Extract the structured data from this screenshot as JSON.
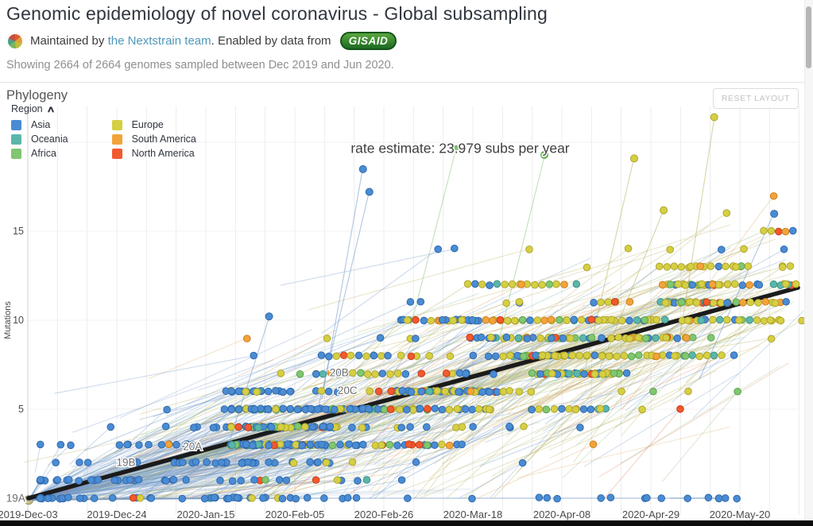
{
  "header": {
    "title": "Genomic epidemiology of novel coronavirus - Global subsampling",
    "byline": {
      "maintained_prefix": "Maintained by ",
      "team_link": "the Nextstrain team",
      "middle": ". Enabled by data from ",
      "gisaid_label": "GISAID"
    },
    "showing": "Showing 2664 of 2664 genomes sampled between Dec 2019 and Jun 2020."
  },
  "panel": {
    "title": "Phylogeny",
    "reset_button": "RESET LAYOUT",
    "legend_title": "Region",
    "legend_collapse_icon": "chevron-up"
  },
  "legend": {
    "columns": [
      [
        "asia",
        "oceania",
        "africa"
      ],
      [
        "europe",
        "south_america",
        "north_america"
      ]
    ]
  },
  "chart_data": {
    "type": "scatter",
    "description": "Clock view of phylogeny: divergence (mutations) vs sampling date, 2664 genomes colored by region",
    "rate_estimate_label": "rate estimate: 23.979 subs per year",
    "rate_estimate_subs_per_year": 23.979,
    "n_genomes": 2664,
    "x_axis": {
      "unit": "days since 2019-Dec-03",
      "ticks": [
        {
          "label": "2019-Dec-03",
          "day": 0
        },
        {
          "label": "2019-Dec-24",
          "day": 21
        },
        {
          "label": "2020-Jan-15",
          "day": 42
        },
        {
          "label": "2020-Feb-05",
          "day": 63
        },
        {
          "label": "2020-Feb-26",
          "day": 84
        },
        {
          "label": "2020-Mar-18",
          "day": 105
        },
        {
          "label": "2020-Apr-08",
          "day": 126
        },
        {
          "label": "2020-Apr-29",
          "day": 147
        },
        {
          "label": "2020-May-20",
          "day": 168
        }
      ],
      "minor_grid_days": 7,
      "domain_days": [
        0,
        183
      ]
    },
    "y_axis": {
      "label": "Mutations",
      "ticks": [
        15,
        10,
        5
      ],
      "gridlines": [
        5,
        10,
        15,
        20
      ],
      "domain": [
        0,
        22.4
      ]
    },
    "regression": {
      "d1": 0.15,
      "m1": 0.0,
      "d2": 181.7,
      "m2": 11.83,
      "color": "#1b1b1b",
      "width": 5.5
    },
    "root": {
      "day": 0.2,
      "m": -0.1,
      "color": "#c6bd85",
      "stroke": "#9a916b"
    },
    "clades": [
      {
        "name": "19A",
        "day": -5.1,
        "m": -0.2
      },
      {
        "name": "19B",
        "day": 20.9,
        "m": 1.8
      },
      {
        "name": "20A",
        "day": 36.6,
        "m": 2.7
      },
      {
        "name": "20B",
        "day": 71.2,
        "m": 6.85
      },
      {
        "name": "20C",
        "day": 73.1,
        "m": 5.85
      }
    ],
    "rate_label_pos": {
      "day": 102,
      "m": 19.4
    },
    "regions": {
      "asia": {
        "label": "Asia",
        "color": "#4a8cd3",
        "stroke": "#3069ad",
        "line": "#6e96c8"
      },
      "oceania": {
        "label": "Oceania",
        "color": "#5bb6aa",
        "stroke": "#3d948a",
        "line": "#7db8ae"
      },
      "africa": {
        "label": "Africa",
        "color": "#81c671",
        "stroke": "#5aa44e",
        "line": "#94c489"
      },
      "europe": {
        "label": "Europe",
        "color": "#d5cf43",
        "stroke": "#b0a52e",
        "line": "#bab160"
      },
      "south_america": {
        "label": "South America",
        "color": "#f2a43b",
        "stroke": "#cf7f1f",
        "line": "#ddab66"
      },
      "north_america": {
        "label": "North America",
        "color": "#f1592f",
        "stroke": "#c93d17",
        "line": "#e0805f"
      }
    },
    "scatter_model": {
      "seed": 1337,
      "rate_m_per_day": 0.0662,
      "chains": {
        "count": 95,
        "m_min": 3,
        "m_max": 15,
        "k_min": 2,
        "k_max": 14,
        "spacing_days": 1.75,
        "day_sd": 30,
        "day_min": 48,
        "day_max": 182
      },
      "fan": {
        "count": 175,
        "day_mean": 40,
        "day_sd": 27,
        "day_min": 3,
        "day_max": 108,
        "m_cap": 7
      },
      "singles": {
        "count": 195,
        "day_min": 48,
        "day_max": 183,
        "m_sd": 2.6,
        "m_cap": 17
      },
      "zero_row": {
        "count": 26,
        "day_min": 16,
        "day_max": 170
      },
      "zero_line": {
        "d1": 25,
        "d2": 163
      },
      "connectors": {
        "count": 140
      },
      "trunk_bands": {
        "olive_count": 18,
        "blue_count": 16
      },
      "outliers": [
        {
          "d": 79,
          "m": 18.5,
          "r": "asia"
        },
        {
          "d": 80.5,
          "m": 17.2,
          "r": "asia"
        },
        {
          "d": 101,
          "m": 19.6,
          "r": "africa"
        },
        {
          "d": 122,
          "m": 19.3,
          "r": "africa"
        },
        {
          "d": 162,
          "m": 21.4,
          "r": "europe"
        },
        {
          "d": 143,
          "m": 19.1,
          "r": "europe"
        },
        {
          "d": 57,
          "m": 10.2,
          "r": "asia"
        },
        {
          "d": 150,
          "m": 16.2,
          "r": "europe"
        },
        {
          "d": 176,
          "m": 16.0,
          "r": "asia"
        },
        {
          "d": 163,
          "m": 0.0,
          "r": "asia"
        }
      ]
    }
  }
}
